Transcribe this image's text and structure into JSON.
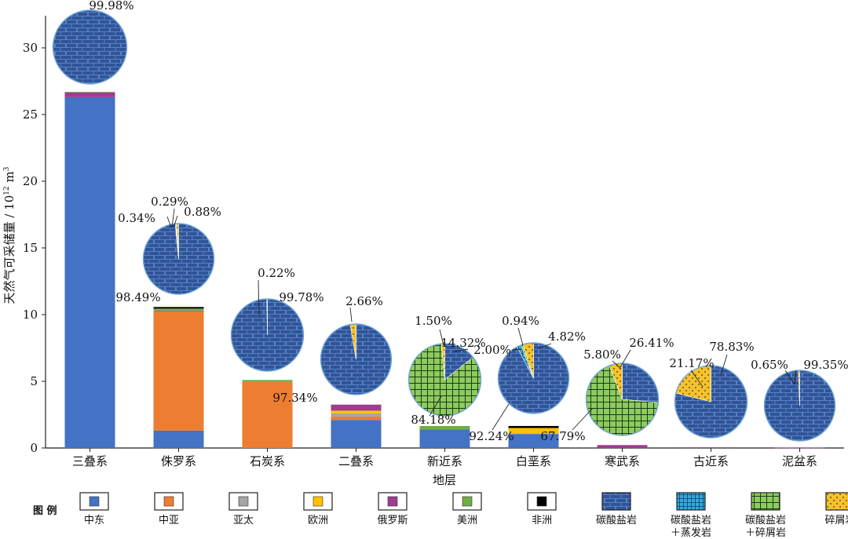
{
  "chart_data": {
    "type": "bar",
    "subtype": "stacked-bar-with-pie-insets",
    "ylabel": "天然气可采储量 / 10",
    "ylabel_sup": "12",
    "ylabel_unit": " m",
    "ylabel_unit_sup": "3",
    "xlabel": "地层",
    "ylim": [
      0,
      32
    ],
    "yticks": [
      0,
      5,
      10,
      15,
      20,
      25,
      30
    ],
    "categories": [
      "三叠系",
      "侏罗系",
      "石炭系",
      "二叠系",
      "新近系",
      "白垩系",
      "寒武系",
      "古近系",
      "泥盆系"
    ],
    "series": [
      {
        "name": "中东",
        "color": "#4472C4",
        "values": [
          26.3,
          1.3,
          0,
          2.1,
          1.4,
          1.05,
          0,
          0,
          0
        ]
      },
      {
        "name": "中亚",
        "color": "#ED7D31",
        "values": [
          0,
          8.95,
          4.95,
          0.25,
          0,
          0,
          0,
          0,
          0
        ]
      },
      {
        "name": "亚太",
        "color": "#A5A5A5",
        "values": [
          0,
          0,
          0,
          0.25,
          0,
          0.05,
          0,
          0,
          0
        ]
      },
      {
        "name": "欧洲",
        "color": "#FFC000",
        "values": [
          0,
          0,
          0,
          0.2,
          0,
          0.4,
          0,
          0,
          0
        ]
      },
      {
        "name": "俄罗斯",
        "color": "#9E3D8F",
        "values": [
          0.35,
          0.05,
          0,
          0.45,
          0,
          0,
          0.22,
          0.05,
          0.03
        ]
      },
      {
        "name": "美洲",
        "color": "#70AD47",
        "values": [
          0.05,
          0.15,
          0.15,
          0,
          0.25,
          0,
          0,
          0,
          0
        ]
      },
      {
        "name": "非洲",
        "color": "#000000",
        "values": [
          0,
          0.12,
          0,
          0,
          0,
          0.15,
          0,
          0,
          0
        ]
      }
    ],
    "pies": [
      {
        "category": "三叠系",
        "slices": [
          {
            "type": "碳酸盐岩",
            "pct": 99.98
          }
        ],
        "labels": [
          "99.98%"
        ]
      },
      {
        "category": "侏罗系",
        "slices": [
          {
            "type": "碳酸盐岩",
            "pct": 98.49
          },
          {
            "type": "碳酸盐岩＋蒸发岩",
            "pct": 0.34
          },
          {
            "type": "碳酸盐岩＋碎屑岩",
            "pct": 0.29
          },
          {
            "type": "碎屑岩",
            "pct": 0.88
          }
        ],
        "labels": [
          "98.49%",
          "0.34%",
          "0.29%",
          "0.88%"
        ]
      },
      {
        "category": "石炭系",
        "slices": [
          {
            "type": "碳酸盐岩",
            "pct": 99.78
          },
          {
            "type": "碎屑岩",
            "pct": 0.22
          }
        ],
        "labels": [
          "99.78%",
          "0.22%"
        ]
      },
      {
        "category": "二叠系",
        "slices": [
          {
            "type": "碳酸盐岩",
            "pct": 97.34
          },
          {
            "type": "碎屑岩",
            "pct": 2.66
          }
        ],
        "labels": [
          "97.34%",
          "2.66%"
        ]
      },
      {
        "category": "新近系",
        "slices": [
          {
            "type": "碳酸盐岩",
            "pct": 14.32
          },
          {
            "type": "碳酸盐岩＋碎屑岩",
            "pct": 84.18
          },
          {
            "type": "碎屑岩",
            "pct": 1.5
          }
        ],
        "labels": [
          "14.32%",
          "84.18%",
          "1.50%"
        ]
      },
      {
        "category": "白垩系",
        "slices": [
          {
            "type": "碳酸盐岩",
            "pct": 92.24
          },
          {
            "type": "碳酸盐岩＋蒸发岩",
            "pct": 2.0
          },
          {
            "type": "碳酸盐岩＋碎屑岩",
            "pct": 0.94
          },
          {
            "type": "碎屑岩",
            "pct": 4.82
          }
        ],
        "labels": [
          "92.24%",
          "2.00%",
          "0.94%",
          "4.82%"
        ]
      },
      {
        "category": "寒武系",
        "slices": [
          {
            "type": "碳酸盐岩",
            "pct": 26.41
          },
          {
            "type": "碳酸盐岩＋碎屑岩",
            "pct": 67.79
          },
          {
            "type": "碎屑岩",
            "pct": 5.8
          }
        ],
        "labels": [
          "26.41%",
          "67.79%",
          "5.80%"
        ]
      },
      {
        "category": "古近系",
        "slices": [
          {
            "type": "碳酸盐岩",
            "pct": 78.83
          },
          {
            "type": "碎屑岩",
            "pct": 21.17
          }
        ],
        "labels": [
          "78.83%",
          "21.17%"
        ]
      },
      {
        "category": "泥盆系",
        "slices": [
          {
            "type": "碳酸盐岩",
            "pct": 99.35
          },
          {
            "type": "碎屑岩",
            "pct": 0.65
          }
        ],
        "labels": [
          "99.35%",
          "0.65%"
        ]
      }
    ],
    "legend": {
      "title": "图 例",
      "placement": "bottom",
      "items": [
        {
          "label": "中东",
          "kind": "region",
          "color": "#4472C4"
        },
        {
          "label": "中亚",
          "kind": "region",
          "color": "#ED7D31"
        },
        {
          "label": "亚太",
          "kind": "region",
          "color": "#A5A5A5"
        },
        {
          "label": "欧洲",
          "kind": "region",
          "color": "#FFC000"
        },
        {
          "label": "俄罗斯",
          "kind": "region",
          "color": "#9E3D8F"
        },
        {
          "label": "美洲",
          "kind": "region",
          "color": "#70AD47"
        },
        {
          "label": "非洲",
          "kind": "region",
          "color": "#000000"
        },
        {
          "label": "碳酸盐岩",
          "kind": "lithology",
          "pattern": "brick"
        },
        {
          "label": "碳酸盐岩",
          "label2": "＋蒸发岩",
          "kind": "lithology",
          "pattern": "fine-grid"
        },
        {
          "label": "碳酸盐岩",
          "label2": "＋碎屑岩",
          "kind": "lithology",
          "pattern": "grid"
        },
        {
          "label": "碎屑岩",
          "kind": "lithology",
          "pattern": "dots"
        }
      ]
    },
    "grid": false
  }
}
